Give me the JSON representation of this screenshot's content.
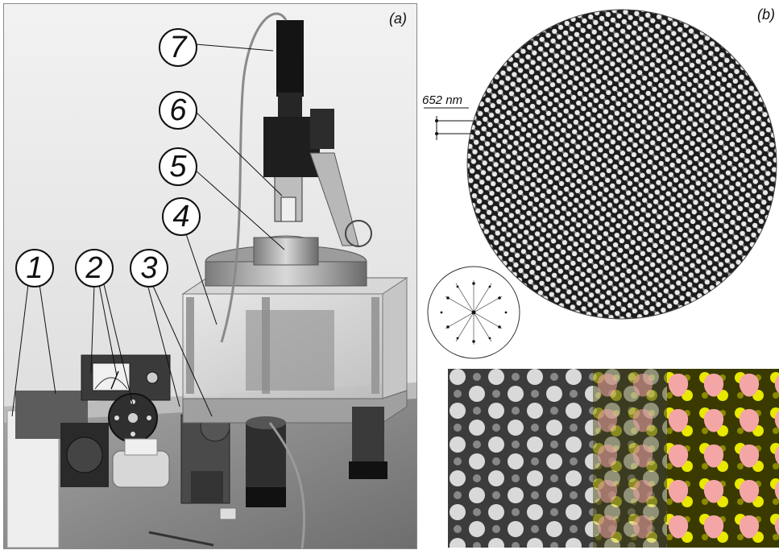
{
  "panel_a": {
    "label": "(a)",
    "callouts": [
      "1",
      "2",
      "3",
      "4",
      "5",
      "6",
      "7"
    ],
    "meter_dial_text": ""
  },
  "panel_b": {
    "label": "(b)",
    "scale_label": "652 nm"
  },
  "colors": {
    "photo_bg": "#cfcfcf",
    "pattern_dark": "#1a1a1a",
    "pattern_light": "#e6e6e6",
    "overlay_pink": "#f4a6a6",
    "overlay_yellow": "#e8e800"
  }
}
